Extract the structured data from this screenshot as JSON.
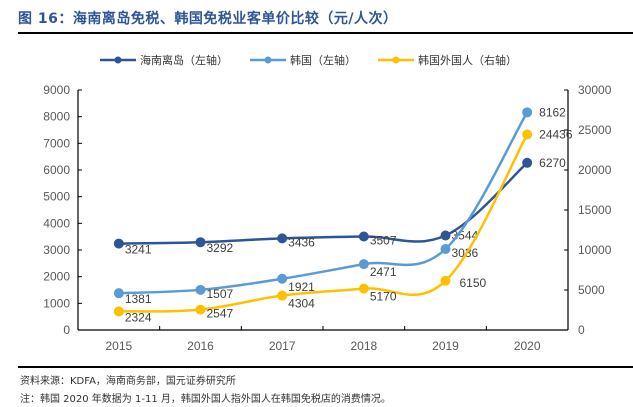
{
  "header": {
    "title": "图 16：海南离岛免税、韩国免税业客单价比较（元/人次）"
  },
  "footer": {
    "source": "资料来源：KDFA，海南商务部，国元证券研究所",
    "note": "注：韩国 2020 年数据为 1-11 月，韩国外国人指外国人在韩国免税店的消费情况。"
  },
  "chart_data": {
    "type": "line",
    "title": "海南离岛免税、韩国免税业客单价比较（元/人次）",
    "categories": [
      "2015",
      "2016",
      "2017",
      "2018",
      "2019",
      "2020"
    ],
    "xlabel": "",
    "ylabel": "",
    "y_left": {
      "range": [
        0,
        9000
      ],
      "ticks": [
        "0",
        "1000",
        "2000",
        "3000",
        "4000",
        "5000",
        "6000",
        "7000",
        "8000",
        "9000"
      ]
    },
    "y_right": {
      "range": [
        0,
        30000
      ],
      "ticks": [
        "0",
        "5000",
        "10000",
        "15000",
        "20000",
        "25000",
        "30000"
      ]
    },
    "grid": false,
    "legend_position": "top",
    "series": [
      {
        "name": "海南离岛（左轴）",
        "axis": "left",
        "color": "#2f5597",
        "values": [
          3241,
          3292,
          3436,
          3507,
          3544,
          6270
        ],
        "labels": [
          "3241",
          "3292",
          "3436",
          "3507",
          "3544",
          "6270"
        ]
      },
      {
        "name": "韩国（左轴）",
        "axis": "left",
        "color": "#5b9bd5",
        "values": [
          1381,
          1507,
          1921,
          2471,
          3036,
          8162
        ],
        "labels": [
          "1381",
          "1507",
          "1921",
          "2471",
          "3036",
          "8162"
        ]
      },
      {
        "name": "韩国外国人（右轴）",
        "axis": "right",
        "color": "#ffc000",
        "values": [
          2324,
          2547,
          4304,
          5170,
          6150,
          24436
        ],
        "labels": [
          "2324",
          "2547",
          "4304",
          "5170",
          "6150",
          "24436"
        ]
      }
    ]
  }
}
